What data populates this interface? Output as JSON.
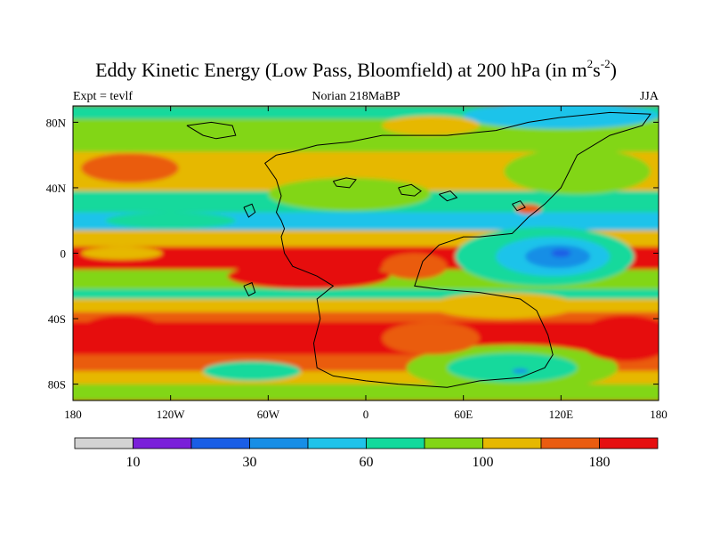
{
  "header": {
    "title_main": "Eddy Kinetic Energy (Low Pass, Bloomfield) at 200 hPa (in m",
    "title_sup1": "2",
    "title_mid": "s",
    "title_sup2": "-2",
    "title_end": ")",
    "left_string": "Expt = tevlf",
    "center_string": "Norian 218MaBP",
    "right_string": "JJA"
  },
  "axes": {
    "lon_range": [
      -180,
      180
    ],
    "lat_range": [
      -90,
      90
    ],
    "x_ticks": [
      {
        "value": -180,
        "label": "180"
      },
      {
        "value": -120,
        "label": "120W"
      },
      {
        "value": -60,
        "label": "60W"
      },
      {
        "value": 0,
        "label": "0"
      },
      {
        "value": 60,
        "label": "60E"
      },
      {
        "value": 120,
        "label": "120E"
      },
      {
        "value": 180,
        "label": "180"
      }
    ],
    "y_ticks": [
      {
        "value": 80,
        "label": "80N"
      },
      {
        "value": 40,
        "label": "40N"
      },
      {
        "value": 0,
        "label": "0"
      },
      {
        "value": -40,
        "label": "40S"
      },
      {
        "value": -80,
        "label": "80S"
      }
    ]
  },
  "colorbar": {
    "colors": [
      "#d3d3d3",
      "#7a1fd9",
      "#1a5ee6",
      "#178ee6",
      "#1fc3ea",
      "#12d99c",
      "#82d616",
      "#e6b800",
      "#ea5c10",
      "#e60f10"
    ],
    "labels": [
      {
        "after_box": 1,
        "text": "10"
      },
      {
        "after_box": 3,
        "text": "30"
      },
      {
        "after_box": 5,
        "text": "60"
      },
      {
        "after_box": 7,
        "text": "100"
      },
      {
        "after_box": 9,
        "text": "180"
      }
    ]
  },
  "field": {
    "background": "#ea5c10",
    "bands": [
      {
        "lat": [
          82,
          90
        ],
        "color": "#12d99c"
      },
      {
        "lat": [
          62,
          82
        ],
        "color": "#82d616"
      },
      {
        "lat": [
          38,
          62
        ],
        "color": "#e6b800"
      },
      {
        "lat": [
          25,
          38
        ],
        "color": "#12d99c"
      },
      {
        "lat": [
          14,
          25
        ],
        "color": "#1fc3ea"
      },
      {
        "lat": [
          4,
          14
        ],
        "color": "#e6b800"
      },
      {
        "lat": [
          -10,
          4
        ],
        "color": "#e60f10"
      },
      {
        "lat": [
          -22,
          -10
        ],
        "color": "#82d616"
      },
      {
        "lat": [
          -28,
          -22
        ],
        "color": "#12d99c"
      },
      {
        "lat": [
          -36,
          -28
        ],
        "color": "#e6b800"
      },
      {
        "lat": [
          -42,
          -36
        ],
        "color": "#ea5c10"
      },
      {
        "lat": [
          -62,
          -42
        ],
        "color": "#e60f10"
      },
      {
        "lat": [
          -72,
          -62
        ],
        "color": "#ea5c10"
      },
      {
        "lat": [
          -80,
          -72
        ],
        "color": "#e6b800"
      },
      {
        "lat": [
          -90,
          -80
        ],
        "color": "#82d616"
      }
    ],
    "patches": [
      {
        "lon": 120,
        "lat": 84,
        "rlon": 60,
        "rlat": 8,
        "color": "#1fc3ea"
      },
      {
        "lon": 40,
        "lat": 78,
        "rlon": 30,
        "rlat": 6,
        "color": "#e6b800"
      },
      {
        "lon": -145,
        "lat": 52,
        "rlon": 30,
        "rlat": 9,
        "color": "#ea5c10"
      },
      {
        "lon": -10,
        "lat": 36,
        "rlon": 50,
        "rlat": 10,
        "color": "#82d616"
      },
      {
        "lon": 130,
        "lat": 50,
        "rlon": 45,
        "rlat": 14,
        "color": "#82d616"
      },
      {
        "lon": 100,
        "lat": 27,
        "rlon": 8,
        "rlat": 3,
        "color": "#ea5c10"
      },
      {
        "lon": 110,
        "lat": -2,
        "rlon": 55,
        "rlat": 18,
        "color": "#12d99c"
      },
      {
        "lon": 115,
        "lat": -2,
        "rlon": 35,
        "rlat": 12,
        "color": "#1fc3ea"
      },
      {
        "lon": 118,
        "lat": -2,
        "rlon": 20,
        "rlat": 7,
        "color": "#178ee6"
      },
      {
        "lon": 120,
        "lat": 0,
        "rlon": 6,
        "rlat": 2.5,
        "color": "#1a5ee6"
      },
      {
        "lon": -150,
        "lat": -50,
        "rlon": 28,
        "rlat": 12,
        "color": "#e60f10"
      },
      {
        "lon": -35,
        "lat": -14,
        "rlon": 50,
        "rlat": 8,
        "color": "#e60f10"
      },
      {
        "lon": 30,
        "lat": -8,
        "rlon": 20,
        "rlat": 8,
        "color": "#ea5c10"
      },
      {
        "lon": 85,
        "lat": -32,
        "rlon": 45,
        "rlat": 8,
        "color": "#e6b800"
      },
      {
        "lon": 90,
        "lat": -70,
        "rlon": 65,
        "rlat": 14,
        "color": "#82d616"
      },
      {
        "lon": 90,
        "lat": -70,
        "rlon": 40,
        "rlat": 9,
        "color": "#12d99c"
      },
      {
        "lon": 95,
        "lat": -72,
        "rlon": 5,
        "rlat": 1.5,
        "color": "#178ee6"
      },
      {
        "lon": 40,
        "lat": -52,
        "rlon": 30,
        "rlat": 10,
        "color": "#ea5c10"
      },
      {
        "lon": 160,
        "lat": -52,
        "rlon": 30,
        "rlat": 14,
        "color": "#e60f10"
      },
      {
        "lon": -70,
        "lat": -72,
        "rlon": 30,
        "rlat": 6,
        "color": "#12d99c"
      },
      {
        "lon": -120,
        "lat": 20,
        "rlon": 40,
        "rlat": 5,
        "color": "#12d99c"
      },
      {
        "lon": -150,
        "lat": 0,
        "rlon": 25,
        "rlat": 4,
        "color": "#e6b800"
      }
    ],
    "coastlines": [
      [
        [
          -55,
          60
        ],
        [
          -62,
          55
        ],
        [
          -55,
          45
        ],
        [
          -52,
          35
        ],
        [
          -55,
          25
        ],
        [
          -52,
          20
        ],
        [
          -50,
          15
        ],
        [
          -52,
          10
        ],
        [
          -50,
          0
        ],
        [
          -45,
          -8
        ],
        [
          -30,
          -14
        ],
        [
          -20,
          -20
        ],
        [
          -30,
          -28
        ],
        [
          -28,
          -40
        ],
        [
          -32,
          -55
        ],
        [
          -30,
          -70
        ],
        [
          -20,
          -75
        ],
        [
          0,
          -78
        ],
        [
          20,
          -80
        ],
        [
          50,
          -82
        ],
        [
          70,
          -78
        ],
        [
          95,
          -76
        ],
        [
          110,
          -70
        ],
        [
          115,
          -62
        ],
        [
          112,
          -50
        ],
        [
          105,
          -35
        ],
        [
          95,
          -28
        ],
        [
          70,
          -24
        ],
        [
          45,
          -22
        ],
        [
          30,
          -20
        ],
        [
          35,
          -5
        ],
        [
          45,
          5
        ],
        [
          60,
          10
        ],
        [
          70,
          10
        ],
        [
          90,
          12
        ],
        [
          100,
          22
        ],
        [
          110,
          30
        ],
        [
          120,
          40
        ],
        [
          125,
          50
        ],
        [
          130,
          60
        ],
        [
          150,
          72
        ],
        [
          170,
          78
        ],
        [
          175,
          85
        ],
        [
          150,
          86
        ],
        [
          120,
          83
        ],
        [
          100,
          80
        ],
        [
          80,
          75
        ],
        [
          50,
          72
        ],
        [
          10,
          72
        ],
        [
          -10,
          68
        ],
        [
          -30,
          66
        ],
        [
          -45,
          62
        ],
        [
          -55,
          60
        ]
      ],
      [
        [
          -110,
          78
        ],
        [
          -95,
          80
        ],
        [
          -82,
          78
        ],
        [
          -80,
          72
        ],
        [
          -92,
          70
        ],
        [
          -100,
          72
        ],
        [
          -110,
          78
        ]
      ],
      [
        [
          -20,
          44
        ],
        [
          -12,
          46
        ],
        [
          -6,
          45
        ],
        [
          -10,
          40
        ],
        [
          -18,
          41
        ],
        [
          -20,
          44
        ]
      ],
      [
        [
          -75,
          28
        ],
        [
          -70,
          30
        ],
        [
          -68,
          25
        ],
        [
          -72,
          22
        ],
        [
          -75,
          28
        ]
      ],
      [
        [
          -75,
          -20
        ],
        [
          -70,
          -18
        ],
        [
          -68,
          -24
        ],
        [
          -72,
          -26
        ],
        [
          -75,
          -20
        ]
      ],
      [
        [
          20,
          40
        ],
        [
          28,
          42
        ],
        [
          34,
          38
        ],
        [
          30,
          35
        ],
        [
          22,
          36
        ],
        [
          20,
          40
        ]
      ],
      [
        [
          45,
          36
        ],
        [
          52,
          38
        ],
        [
          56,
          34
        ],
        [
          50,
          32
        ],
        [
          45,
          36
        ]
      ],
      [
        [
          90,
          30
        ],
        [
          95,
          32
        ],
        [
          98,
          28
        ],
        [
          93,
          26
        ],
        [
          90,
          30
        ]
      ]
    ]
  }
}
